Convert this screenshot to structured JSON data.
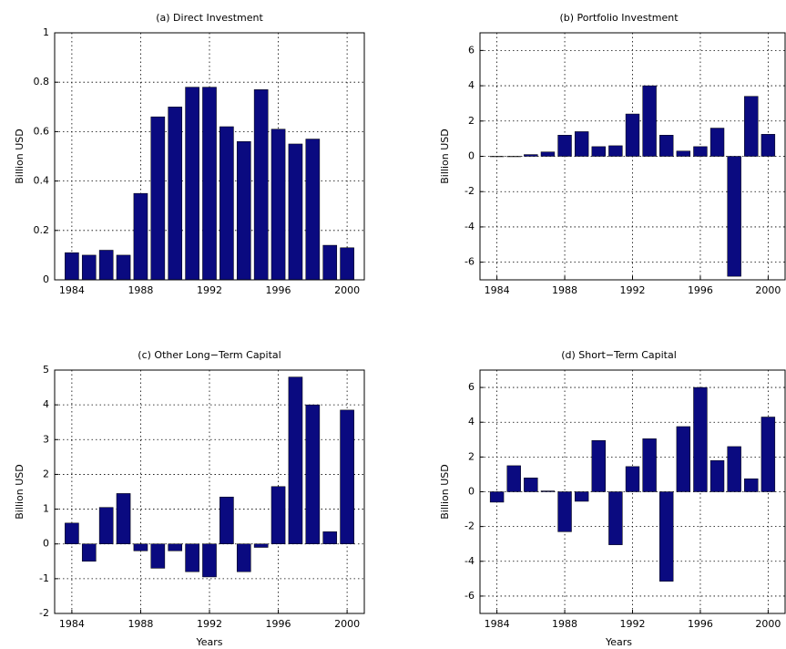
{
  "chart_data": [
    {
      "type": "bar",
      "title": "(a) Direct Investment",
      "ylabel": "Billion USD",
      "color": "#0a0a80",
      "grid": true,
      "x": [
        1984,
        1985,
        1986,
        1987,
        1988,
        1989,
        1990,
        1991,
        1992,
        1993,
        1994,
        1995,
        1996,
        1997,
        1998,
        1999,
        2000
      ],
      "values": [
        0.11,
        0.1,
        0.12,
        0.1,
        0.35,
        0.66,
        0.7,
        0.78,
        0.78,
        0.62,
        0.56,
        0.77,
        0.61,
        0.55,
        0.57,
        0.14,
        0.13
      ],
      "xlim": [
        1983,
        2001
      ],
      "xticks": [
        1984,
        1988,
        1992,
        1996,
        2000
      ],
      "ylim": [
        0,
        1
      ],
      "yticks": [
        0,
        0.2,
        0.4,
        0.6,
        0.8,
        1
      ]
    },
    {
      "type": "bar",
      "title": "(b) Portfolio Investment",
      "ylabel": "Billion USD",
      "color": "#0a0a80",
      "grid": true,
      "x": [
        1984,
        1985,
        1986,
        1987,
        1988,
        1989,
        1990,
        1991,
        1992,
        1993,
        1994,
        1995,
        1996,
        1997,
        1998,
        1999,
        2000
      ],
      "values": [
        0,
        0,
        0.1,
        0.25,
        1.2,
        1.4,
        0.55,
        0.6,
        2.4,
        4.0,
        1.2,
        0.3,
        0.55,
        1.6,
        -6.8,
        3.4,
        1.25
      ],
      "xlim": [
        1983,
        2001
      ],
      "xticks": [
        1984,
        1988,
        1992,
        1996,
        2000
      ],
      "ylim": [
        -7,
        7
      ],
      "yticks": [
        -6,
        -4,
        -2,
        0,
        2,
        4,
        6
      ]
    },
    {
      "type": "bar",
      "title": "(c) Other Long−Term Capital",
      "ylabel": "Billion USD",
      "xlabel": "Years",
      "color": "#0a0a80",
      "grid": true,
      "x": [
        1984,
        1985,
        1986,
        1987,
        1988,
        1989,
        1990,
        1991,
        1992,
        1993,
        1994,
        1995,
        1996,
        1997,
        1998,
        1999,
        2000
      ],
      "values": [
        0.6,
        -0.5,
        1.05,
        1.45,
        -0.2,
        -0.7,
        -0.2,
        -0.8,
        -0.95,
        1.35,
        -0.8,
        -0.1,
        1.65,
        4.8,
        4.0,
        0.35,
        3.85
      ],
      "xlim": [
        1983,
        2001
      ],
      "xticks": [
        1984,
        1988,
        1992,
        1996,
        2000
      ],
      "ylim": [
        -2,
        5
      ],
      "yticks": [
        -2,
        -1,
        0,
        1,
        2,
        3,
        4,
        5
      ]
    },
    {
      "type": "bar",
      "title": "(d) Short−Term Capital",
      "ylabel": "Billion USD",
      "xlabel": "Years",
      "color": "#0a0a80",
      "grid": true,
      "x": [
        1984,
        1985,
        1986,
        1987,
        1988,
        1989,
        1990,
        1991,
        1992,
        1993,
        1994,
        1995,
        1996,
        1997,
        1998,
        1999,
        2000
      ],
      "values": [
        -0.6,
        1.5,
        0.8,
        0.05,
        -2.3,
        -0.55,
        2.95,
        -3.05,
        1.45,
        3.05,
        -5.15,
        3.75,
        6.0,
        1.8,
        2.6,
        0.75,
        4.3
      ],
      "xlim": [
        1983,
        2001
      ],
      "xticks": [
        1984,
        1988,
        1992,
        1996,
        2000
      ],
      "ylim": [
        -7,
        7
      ],
      "yticks": [
        -6,
        -4,
        -2,
        0,
        2,
        4,
        6
      ]
    }
  ]
}
